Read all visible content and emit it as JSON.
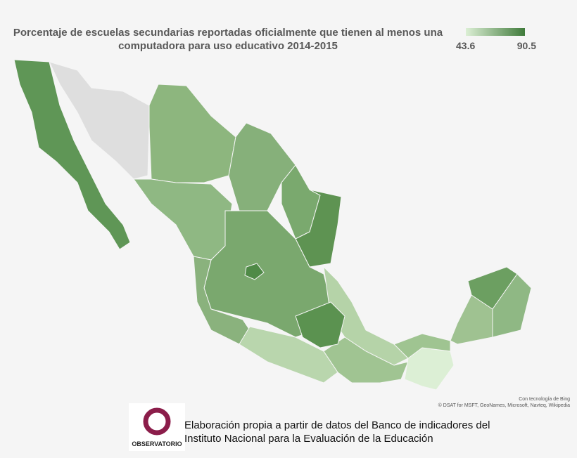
{
  "title_lines": [
    "Porcentaje de escuelas secundarias reportadas oficialmente que tienen al menos una",
    "computadora para uso educativo 2014-2015"
  ],
  "legend": {
    "min": 43.6,
    "max": 90.5,
    "min_color": "#dcefd5",
    "max_color": "#3f7a3a"
  },
  "attribution": [
    "Con tecnología de Bing",
    "© DSAT for MSFT, GeoNames, Microsoft, Navteq, Wikipedia"
  ],
  "logo_text": "OBSERVATORIO",
  "footer_lines": [
    "Elaboración propia a partir de datos del Banco de indicadores del",
    "Instituto Nacional para la Evaluación de la Educación"
  ]
}
